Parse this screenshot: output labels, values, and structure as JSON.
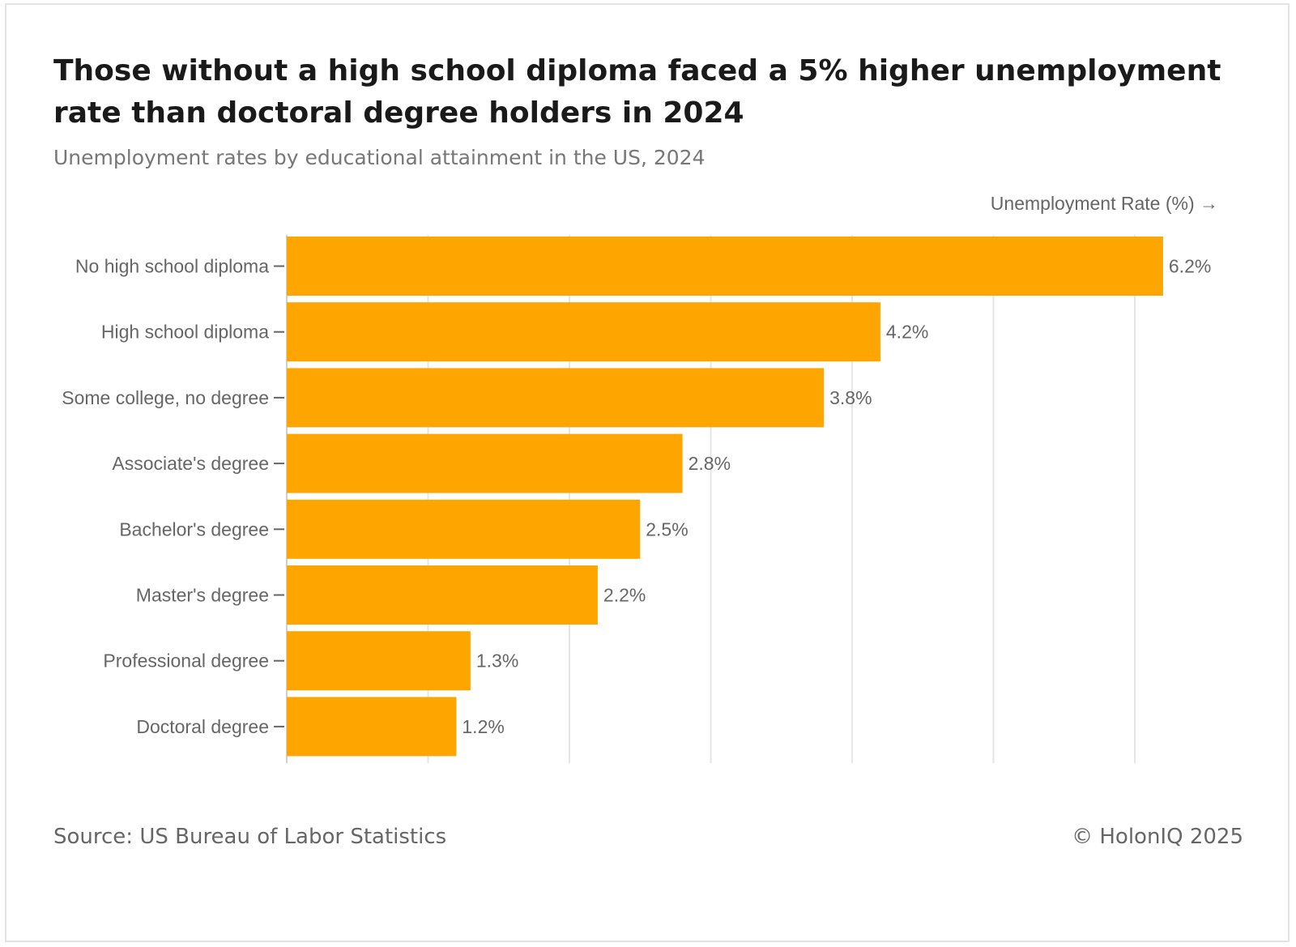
{
  "header": {
    "title": "Those without a high school diploma faced a 5% higher unemployment rate than doctoral degree holders in 2024",
    "subtitle": "Unemployment rates by educational attainment in the US, 2024"
  },
  "footer": {
    "source": "Source: US Bureau of Labor Statistics",
    "copyright": "© HolonIQ 2025"
  },
  "chart_data": {
    "type": "bar",
    "orientation": "horizontal",
    "title": "Those without a high school diploma faced a 5% higher unemployment rate than doctoral degree holders in 2024",
    "subtitle": "Unemployment rates by educational attainment in the US, 2024",
    "xlabel": "Unemployment Rate (%) →",
    "ylabel": "",
    "categories": [
      "No high school diploma",
      "High school diploma",
      "Some college, no degree",
      "Associate's degree",
      "Bachelor's degree",
      "Master's degree",
      "Professional degree",
      "Doctoral degree"
    ],
    "values": [
      6.2,
      4.2,
      3.8,
      2.8,
      2.5,
      2.2,
      1.3,
      1.2
    ],
    "value_labels": [
      "6.2%",
      "4.2%",
      "3.8%",
      "2.8%",
      "2.5%",
      "2.2%",
      "1.3%",
      "1.2%"
    ],
    "xlim": [
      0,
      6.5
    ],
    "gridlines": [
      0,
      1,
      2,
      3,
      4,
      5,
      6
    ],
    "grid": true,
    "bar_color": "#FFA500",
    "grid_color": "#e6e6e6",
    "text_color": "#666666"
  }
}
